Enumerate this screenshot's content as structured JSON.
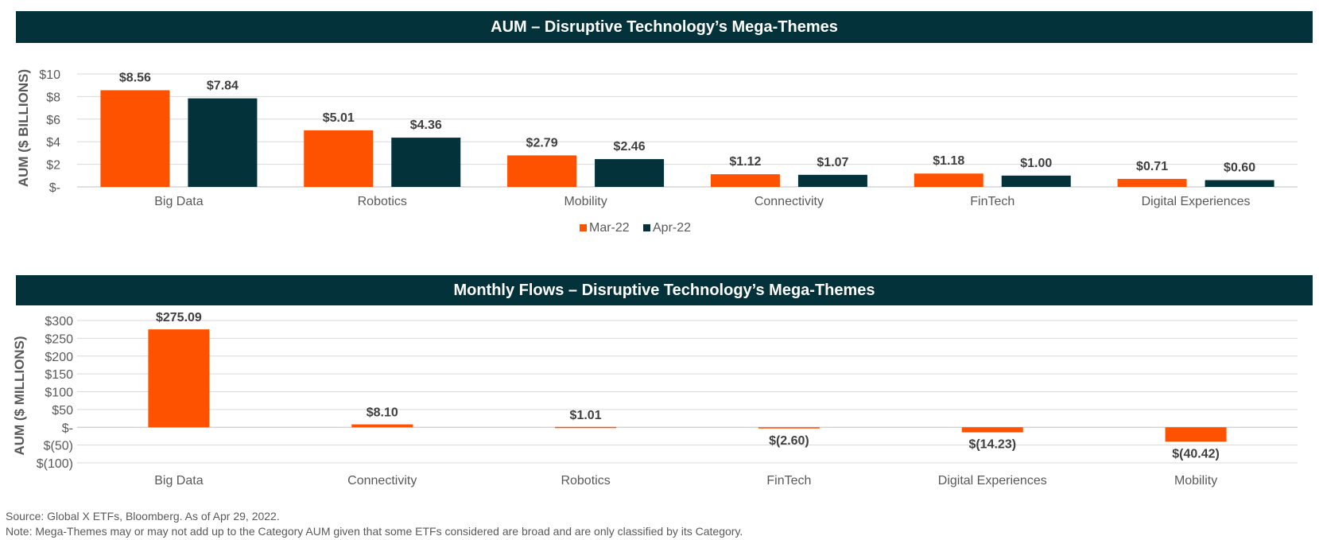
{
  "chart_data": [
    {
      "type": "bar",
      "title": "AUM – Disruptive Technology’s Mega-Themes",
      "ylabel": "AUM ($ BILLIONS)",
      "xlabel": "",
      "ylim": [
        0,
        10
      ],
      "yticks": [
        0,
        2,
        4,
        6,
        8,
        10
      ],
      "ytick_labels": [
        "$-",
        "$2",
        "$4",
        "$6",
        "$8",
        "$10"
      ],
      "categories": [
        "Big Data",
        "Robotics",
        "Mobility",
        "Connectivity",
        "FinTech",
        "Digital Experiences"
      ],
      "series": [
        {
          "name": "Mar-22",
          "color": "#ff5200",
          "values": [
            8.56,
            5.01,
            2.79,
            1.12,
            1.18,
            0.71
          ],
          "labels": [
            "$8.56",
            "$5.01",
            "$2.79",
            "$1.12",
            "$1.18",
            "$0.71"
          ]
        },
        {
          "name": "Apr-22",
          "color": "#04323a",
          "values": [
            7.84,
            4.36,
            2.46,
            1.07,
            1.0,
            0.6
          ],
          "labels": [
            "$7.84",
            "$4.36",
            "$2.46",
            "$1.07",
            "$1.00",
            "$0.60"
          ]
        }
      ],
      "grid": true,
      "legend": "bottom-center"
    },
    {
      "type": "bar",
      "title": "Monthly Flows – Disruptive Technology’s Mega-Themes",
      "ylabel": "AUM ($ MILLIONS)",
      "xlabel": "",
      "ylim": [
        -100,
        300
      ],
      "yticks": [
        -100,
        -50,
        0,
        50,
        100,
        150,
        200,
        250,
        300
      ],
      "ytick_labels": [
        "$(100)",
        "$(50)",
        "$-",
        "$50",
        "$100",
        "$150",
        "$200",
        "$250",
        "$300"
      ],
      "categories": [
        "Big Data",
        "Connectivity",
        "Robotics",
        "FinTech",
        "Digital Experiences",
        "Mobility"
      ],
      "series": [
        {
          "color": "#ff5200",
          "values": [
            275.09,
            8.1,
            1.01,
            -2.6,
            -14.23,
            -40.42
          ],
          "labels": [
            "$275.09",
            "$8.10",
            "$1.01",
            "$(2.60)",
            "$(14.23)",
            "$(40.42)"
          ]
        }
      ],
      "grid": true
    }
  ],
  "footer": {
    "source": "Source: Global X ETFs, Bloomberg. As of Apr 29, 2022.",
    "note": "Note: Mega-Themes may or may not add up to the Category AUM given that some ETFs considered are broad and are only classified by its Category."
  }
}
